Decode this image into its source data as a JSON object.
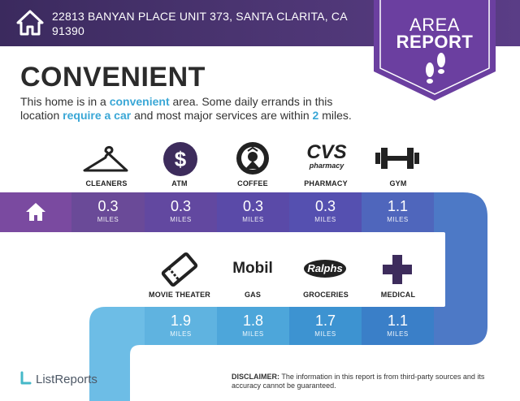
{
  "header": {
    "address": "22813 BANYAN PLACE UNIT 373, SANTA CLARITA, CA 91390",
    "home_icon": "house-icon"
  },
  "badge": {
    "line1": "AREA",
    "line2": "REPORT",
    "icon": "footprints-icon"
  },
  "headline": "CONVENIENT",
  "description": {
    "part1": "This home is in a ",
    "hl1": "convenient",
    "part2": " area. Some daily errands in this location ",
    "hl2": "require a car",
    "part3": " and most major services are within ",
    "hl3": "2",
    "part4": " miles."
  },
  "services_top": [
    {
      "label": "CLEANERS",
      "value": "0.3",
      "unit": "MILES",
      "icon": "hanger-icon",
      "color": "#6a4a98"
    },
    {
      "label": "ATM",
      "value": "0.3",
      "unit": "MILES",
      "icon": "dollar-icon",
      "color": "#6248a0"
    },
    {
      "label": "COFFEE",
      "value": "0.3",
      "unit": "MILES",
      "icon": "starbucks-icon",
      "color": "#5a4aa8"
    },
    {
      "label": "PHARMACY",
      "value": "0.3",
      "unit": "MILES",
      "icon": "cvs-icon",
      "color": "#5550b0"
    },
    {
      "label": "GYM",
      "value": "1.1",
      "unit": "MILES",
      "icon": "dumbbell-icon",
      "color": "#4f66bc"
    }
  ],
  "services_bottom": [
    {
      "label": "MOVIE THEATER",
      "value": "1.9",
      "unit": "MILES",
      "icon": "ticket-icon",
      "color": "#5fb3e0"
    },
    {
      "label": "GAS",
      "value": "1.8",
      "unit": "MILES",
      "icon": "mobil-icon",
      "color": "#4da6da"
    },
    {
      "label": "GROCERIES",
      "value": "1.7",
      "unit": "MILES",
      "icon": "ralphs-icon",
      "color": "#3d93d1"
    },
    {
      "label": "MEDICAL",
      "value": "1.1",
      "unit": "MILES",
      "icon": "medical-cross-icon",
      "color": "#3a7fc8"
    }
  ],
  "brand_text": {
    "mobil": "Mobil",
    "ralphs": "Ralphs",
    "cvs": "CVS",
    "cvs_sub": "pharmacy"
  },
  "footer": {
    "logo": "ListReports",
    "disclaimer_label": "DISCLAIMER:",
    "disclaimer_text": " The information in this report is from third-party sources and its accuracy cannot be guaranteed."
  },
  "colors": {
    "header": "#3b2a5e",
    "badge": "#6b3fa0",
    "accent": "#3aa7d6",
    "band_start": "#7a4aa0",
    "band_end": "#4d79c6"
  }
}
